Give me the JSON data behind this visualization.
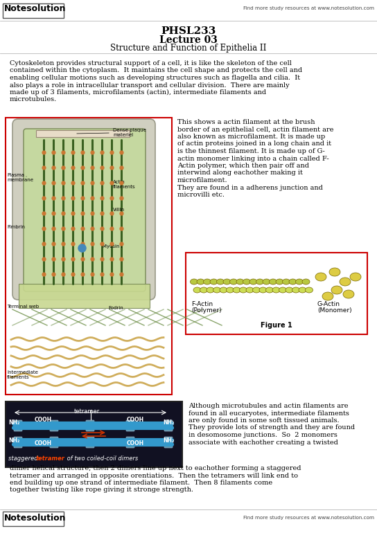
{
  "bg_color": "#ffffff",
  "header_logo_text": "Notesolution",
  "header_right_text": "Find more study resources at www.notesolution.com",
  "footer_logo_text": "Notesolution",
  "footer_right_text": "Find more study resources at www.notesolution.com",
  "title_line1": "PHSL233",
  "title_line2": "Lecture 03",
  "title_line3": "Structure and Function of Epithelia II",
  "body_text1_lines": [
    "Cytoskeleton provides structural support of a cell, it is like the skeleton of the cell",
    "contained within the cytoplasm.  It maintains the cell shape and protects the cell and",
    "enabling cellular motions such as developing structures such as flagella and cilia.  It",
    "also plays a role in intracellular transport and cellular division.  There are mainly",
    "made up of 3 filaments, microfilaments (actin), intermediate filaments and",
    "microtubules."
  ],
  "right_text1_lines": [
    "This shows a actin filament at the brush",
    "border of an epithelial cell, actin filament are",
    "also known as microfilament. It is made up",
    "of actin proteins joined in a long chain and it",
    "is the thinnest filament. It is made up of G-",
    "actin monomer linking into a chain called F-",
    "Actin polymer, which then pair off and",
    "interwind along eachother making it",
    "microfilament.",
    "They are found in a adherens junction and",
    "microvilli etc."
  ],
  "figure1_caption": "Figure 1",
  "figure1_left_label1": "F-Actin",
  "figure1_left_label2": "(Polymer)",
  "figure1_right_label1": "G-Actin",
  "figure1_right_label2": "(Monomer)",
  "bottom_caption": "staggered tetramer of two coiled-coil dimers",
  "bottom_tetramer_word": "tetramer",
  "body_text2_lines": [
    "Although microtubules and actin filaments are",
    "found in all eucaryotes, intermediate filaments",
    "are only found in some soft tissued animals.",
    "They provide lots of strength and they are found",
    "in desomosome junctions.  So  2 monomers",
    "associate with eachother creating a twisted"
  ],
  "body_text2_cont_lines": [
    "dimer helical structure, then 2 dimers line up next to eachother forming a staggered",
    "tetramer and arranged in opposite orentiations.  Then the tetramers will link end to",
    "end building up one strand of intermediate filament.  Then 8 filaments come",
    "together twisting like rope giving it stronge strength."
  ],
  "border_color_red": "#cc0000",
  "text_color": "#000000"
}
